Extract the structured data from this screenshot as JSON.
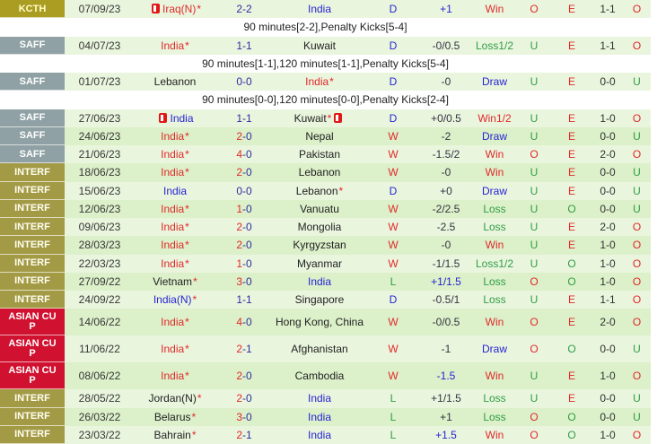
{
  "colors": {
    "win_red": "#e02a2a",
    "draw_blue": "#2525d2",
    "loss_green": "#2f9e44",
    "score_navy": "#2e2ea0",
    "kcth_bg": "#ab9c22",
    "saff_bg": "#8fa1a4",
    "interf_bg": "#a39a45",
    "asiancup_bg": "#d01230",
    "row_light": "#eaf5de",
    "row_dark": "#dcf0ca"
  },
  "table": {
    "rows": [
      {
        "type": "match",
        "competition": "KCTH",
        "comp_style": "kcth",
        "date": "07/09/23",
        "home": {
          "name": "Iraq(N)",
          "star": true,
          "color": "red",
          "icon": "before"
        },
        "score": {
          "h": "2",
          "a": "2",
          "h_win": false,
          "a_win": false
        },
        "away": {
          "name": "India",
          "star": false,
          "color": "blue",
          "icon": null
        },
        "result": "D",
        "handicap": "+1",
        "handicap_blue": true,
        "hdp_result": "Win",
        "ou_ft": "O",
        "eo": "E",
        "ht_score": "1-1",
        "ou_ht": "O"
      },
      {
        "type": "note",
        "text": "90 minutes[2-2],Penalty Kicks[5-4]"
      },
      {
        "type": "match",
        "competition": "SAFF",
        "comp_style": "saff",
        "date": "04/07/23",
        "home": {
          "name": "India",
          "star": true,
          "color": "red",
          "icon": null
        },
        "score": {
          "h": "1",
          "a": "1",
          "h_win": false,
          "a_win": false
        },
        "away": {
          "name": "Kuwait",
          "star": false,
          "color": "black",
          "icon": null
        },
        "result": "D",
        "handicap": "-0/0.5",
        "handicap_blue": false,
        "hdp_result": "Loss1/2",
        "ou_ft": "U",
        "eo": "E",
        "ht_score": "1-1",
        "ou_ht": "O"
      },
      {
        "type": "note",
        "text": "90 minutes[1-1],120 minutes[1-1],Penalty Kicks[5-4]"
      },
      {
        "type": "match",
        "competition": "SAFF",
        "comp_style": "saff",
        "date": "01/07/23",
        "home": {
          "name": "Lebanon",
          "star": false,
          "color": "black",
          "icon": null
        },
        "score": {
          "h": "0",
          "a": "0",
          "h_win": false,
          "a_win": false
        },
        "away": {
          "name": "India",
          "star": true,
          "color": "red",
          "icon": null
        },
        "result": "D",
        "handicap": "-0",
        "handicap_blue": false,
        "hdp_result": "Draw",
        "ou_ft": "U",
        "eo": "E",
        "ht_score": "0-0",
        "ou_ht": "U"
      },
      {
        "type": "note",
        "text": "90 minutes[0-0],120 minutes[0-0],Penalty Kicks[2-4]"
      },
      {
        "type": "match",
        "competition": "SAFF",
        "comp_style": "saff",
        "date": "27/06/23",
        "home": {
          "name": "India",
          "star": false,
          "color": "blue",
          "icon": "before"
        },
        "score": {
          "h": "1",
          "a": "1",
          "h_win": false,
          "a_win": false
        },
        "away": {
          "name": "Kuwait",
          "star": true,
          "color": "black",
          "icon": "after"
        },
        "result": "D",
        "handicap": "+0/0.5",
        "handicap_blue": false,
        "hdp_result": "Win1/2",
        "ou_ft": "U",
        "eo": "E",
        "ht_score": "1-0",
        "ou_ht": "O"
      },
      {
        "type": "match",
        "competition": "SAFF",
        "comp_style": "saff",
        "date": "24/06/23",
        "home": {
          "name": "India",
          "star": true,
          "color": "red",
          "icon": null
        },
        "score": {
          "h": "2",
          "a": "0",
          "h_win": true,
          "a_win": false
        },
        "away": {
          "name": "Nepal",
          "star": false,
          "color": "black",
          "icon": null
        },
        "result": "W",
        "handicap": "-2",
        "handicap_blue": false,
        "hdp_result": "Draw",
        "ou_ft": "U",
        "eo": "E",
        "ht_score": "0-0",
        "ou_ht": "U"
      },
      {
        "type": "match",
        "competition": "SAFF",
        "comp_style": "saff",
        "date": "21/06/23",
        "home": {
          "name": "India",
          "star": true,
          "color": "red",
          "icon": null
        },
        "score": {
          "h": "4",
          "a": "0",
          "h_win": true,
          "a_win": false
        },
        "away": {
          "name": "Pakistan",
          "star": false,
          "color": "black",
          "icon": null
        },
        "result": "W",
        "handicap": "-1.5/2",
        "handicap_blue": false,
        "hdp_result": "Win",
        "ou_ft": "O",
        "eo": "E",
        "ht_score": "2-0",
        "ou_ht": "O"
      },
      {
        "type": "match",
        "competition": "INTERF",
        "comp_style": "interf",
        "date": "18/06/23",
        "home": {
          "name": "India",
          "star": true,
          "color": "red",
          "icon": null
        },
        "score": {
          "h": "2",
          "a": "0",
          "h_win": true,
          "a_win": false
        },
        "away": {
          "name": "Lebanon",
          "star": false,
          "color": "black",
          "icon": null
        },
        "result": "W",
        "handicap": "-0",
        "handicap_blue": false,
        "hdp_result": "Win",
        "ou_ft": "U",
        "eo": "E",
        "ht_score": "0-0",
        "ou_ht": "U"
      },
      {
        "type": "match",
        "competition": "INTERF",
        "comp_style": "interf",
        "date": "15/06/23",
        "home": {
          "name": "India",
          "star": false,
          "color": "blue",
          "icon": null
        },
        "score": {
          "h": "0",
          "a": "0",
          "h_win": false,
          "a_win": false
        },
        "away": {
          "name": "Lebanon",
          "star": true,
          "color": "black",
          "icon": null
        },
        "result": "D",
        "handicap": "+0",
        "handicap_blue": false,
        "hdp_result": "Draw",
        "ou_ft": "U",
        "eo": "E",
        "ht_score": "0-0",
        "ou_ht": "U"
      },
      {
        "type": "match",
        "competition": "INTERF",
        "comp_style": "interf",
        "date": "12/06/23",
        "home": {
          "name": "India",
          "star": true,
          "color": "red",
          "icon": null
        },
        "score": {
          "h": "1",
          "a": "0",
          "h_win": true,
          "a_win": false
        },
        "away": {
          "name": "Vanuatu",
          "star": false,
          "color": "black",
          "icon": null
        },
        "result": "W",
        "handicap": "-2/2.5",
        "handicap_blue": false,
        "hdp_result": "Loss",
        "ou_ft": "U",
        "eo": "O",
        "ht_score": "0-0",
        "ou_ht": "U"
      },
      {
        "type": "match",
        "competition": "INTERF",
        "comp_style": "interf",
        "date": "09/06/23",
        "home": {
          "name": "India",
          "star": true,
          "color": "red",
          "icon": null
        },
        "score": {
          "h": "2",
          "a": "0",
          "h_win": true,
          "a_win": false
        },
        "away": {
          "name": "Mongolia",
          "star": false,
          "color": "black",
          "icon": null
        },
        "result": "W",
        "handicap": "-2.5",
        "handicap_blue": false,
        "hdp_result": "Loss",
        "ou_ft": "U",
        "eo": "E",
        "ht_score": "2-0",
        "ou_ht": "O"
      },
      {
        "type": "match",
        "competition": "INTERF",
        "comp_style": "interf",
        "date": "28/03/23",
        "home": {
          "name": "India",
          "star": true,
          "color": "red",
          "icon": null
        },
        "score": {
          "h": "2",
          "a": "0",
          "h_win": true,
          "a_win": false
        },
        "away": {
          "name": "Kyrgyzstan",
          "star": false,
          "color": "black",
          "icon": null
        },
        "result": "W",
        "handicap": "-0",
        "handicap_blue": false,
        "hdp_result": "Win",
        "ou_ft": "U",
        "eo": "E",
        "ht_score": "1-0",
        "ou_ht": "O"
      },
      {
        "type": "match",
        "competition": "INTERF",
        "comp_style": "interf",
        "date": "22/03/23",
        "home": {
          "name": "India",
          "star": true,
          "color": "red",
          "icon": null
        },
        "score": {
          "h": "1",
          "a": "0",
          "h_win": true,
          "a_win": false
        },
        "away": {
          "name": "Myanmar",
          "star": false,
          "color": "black",
          "icon": null
        },
        "result": "W",
        "handicap": "-1/1.5",
        "handicap_blue": false,
        "hdp_result": "Loss1/2",
        "ou_ft": "U",
        "eo": "O",
        "ht_score": "1-0",
        "ou_ht": "O"
      },
      {
        "type": "match",
        "competition": "INTERF",
        "comp_style": "interf",
        "date": "27/09/22",
        "home": {
          "name": "Vietnam",
          "star": true,
          "color": "black",
          "icon": null
        },
        "score": {
          "h": "3",
          "a": "0",
          "h_win": true,
          "a_win": false
        },
        "away": {
          "name": "India",
          "star": false,
          "color": "blue",
          "icon": null
        },
        "result": "L",
        "handicap": "+1/1.5",
        "handicap_blue": true,
        "hdp_result": "Loss",
        "ou_ft": "O",
        "eo": "O",
        "ht_score": "1-0",
        "ou_ht": "O"
      },
      {
        "type": "match",
        "competition": "INTERF",
        "comp_style": "interf",
        "date": "24/09/22",
        "home": {
          "name": "India(N)",
          "star": true,
          "color": "blue",
          "icon": null
        },
        "score": {
          "h": "1",
          "a": "1",
          "h_win": false,
          "a_win": false
        },
        "away": {
          "name": "Singapore",
          "star": false,
          "color": "black",
          "icon": null
        },
        "result": "D",
        "handicap": "-0.5/1",
        "handicap_blue": false,
        "hdp_result": "Loss",
        "ou_ft": "U",
        "eo": "E",
        "ht_score": "1-1",
        "ou_ht": "O"
      },
      {
        "type": "match",
        "competition": "ASIAN CUP",
        "comp_style": "asiancup",
        "date": "14/06/22",
        "home": {
          "name": "India",
          "star": true,
          "color": "red",
          "icon": null
        },
        "score": {
          "h": "4",
          "a": "0",
          "h_win": true,
          "a_win": false
        },
        "away": {
          "name": "Hong Kong, China",
          "star": false,
          "color": "black",
          "icon": null
        },
        "result": "W",
        "handicap": "-0/0.5",
        "handicap_blue": false,
        "hdp_result": "Win",
        "ou_ft": "O",
        "eo": "E",
        "ht_score": "2-0",
        "ou_ht": "O"
      },
      {
        "type": "match",
        "competition": "ASIAN CUP",
        "comp_style": "asiancup",
        "date": "11/06/22",
        "home": {
          "name": "India",
          "star": true,
          "color": "red",
          "icon": null
        },
        "score": {
          "h": "2",
          "a": "1",
          "h_win": true,
          "a_win": false
        },
        "away": {
          "name": "Afghanistan",
          "star": false,
          "color": "black",
          "icon": null
        },
        "result": "W",
        "handicap": "-1",
        "handicap_blue": false,
        "hdp_result": "Draw",
        "ou_ft": "O",
        "eo": "O",
        "ht_score": "0-0",
        "ou_ht": "U"
      },
      {
        "type": "match",
        "competition": "ASIAN CUP",
        "comp_style": "asiancup",
        "date": "08/06/22",
        "home": {
          "name": "India",
          "star": true,
          "color": "red",
          "icon": null
        },
        "score": {
          "h": "2",
          "a": "0",
          "h_win": true,
          "a_win": false
        },
        "away": {
          "name": "Cambodia",
          "star": false,
          "color": "black",
          "icon": null
        },
        "result": "W",
        "handicap": "-1.5",
        "handicap_blue": true,
        "hdp_result": "Win",
        "ou_ft": "U",
        "eo": "E",
        "ht_score": "1-0",
        "ou_ht": "O"
      },
      {
        "type": "match",
        "competition": "INTERF",
        "comp_style": "interf",
        "date": "28/05/22",
        "home": {
          "name": "Jordan(N)",
          "star": true,
          "color": "black",
          "icon": null
        },
        "score": {
          "h": "2",
          "a": "0",
          "h_win": true,
          "a_win": false
        },
        "away": {
          "name": "India",
          "star": false,
          "color": "blue",
          "icon": null
        },
        "result": "L",
        "handicap": "+1/1.5",
        "handicap_blue": false,
        "hdp_result": "Loss",
        "ou_ft": "U",
        "eo": "E",
        "ht_score": "0-0",
        "ou_ht": "U"
      },
      {
        "type": "match",
        "competition": "INTERF",
        "comp_style": "interf",
        "date": "26/03/22",
        "home": {
          "name": "Belarus",
          "star": true,
          "color": "black",
          "icon": null
        },
        "score": {
          "h": "3",
          "a": "0",
          "h_win": true,
          "a_win": false
        },
        "away": {
          "name": "India",
          "star": false,
          "color": "blue",
          "icon": null
        },
        "result": "L",
        "handicap": "+1",
        "handicap_blue": false,
        "hdp_result": "Loss",
        "ou_ft": "O",
        "eo": "O",
        "ht_score": "0-0",
        "ou_ht": "U"
      },
      {
        "type": "match",
        "competition": "INTERF",
        "comp_style": "interf",
        "date": "23/03/22",
        "home": {
          "name": "Bahrain",
          "star": true,
          "color": "black",
          "icon": null
        },
        "score": {
          "h": "2",
          "a": "1",
          "h_win": true,
          "a_win": false
        },
        "away": {
          "name": "India",
          "star": false,
          "color": "blue",
          "icon": null
        },
        "result": "L",
        "handicap": "+1.5",
        "handicap_blue": true,
        "hdp_result": "Win",
        "ou_ft": "O",
        "eo": "O",
        "ht_score": "1-0",
        "ou_ht": "O"
      }
    ]
  }
}
